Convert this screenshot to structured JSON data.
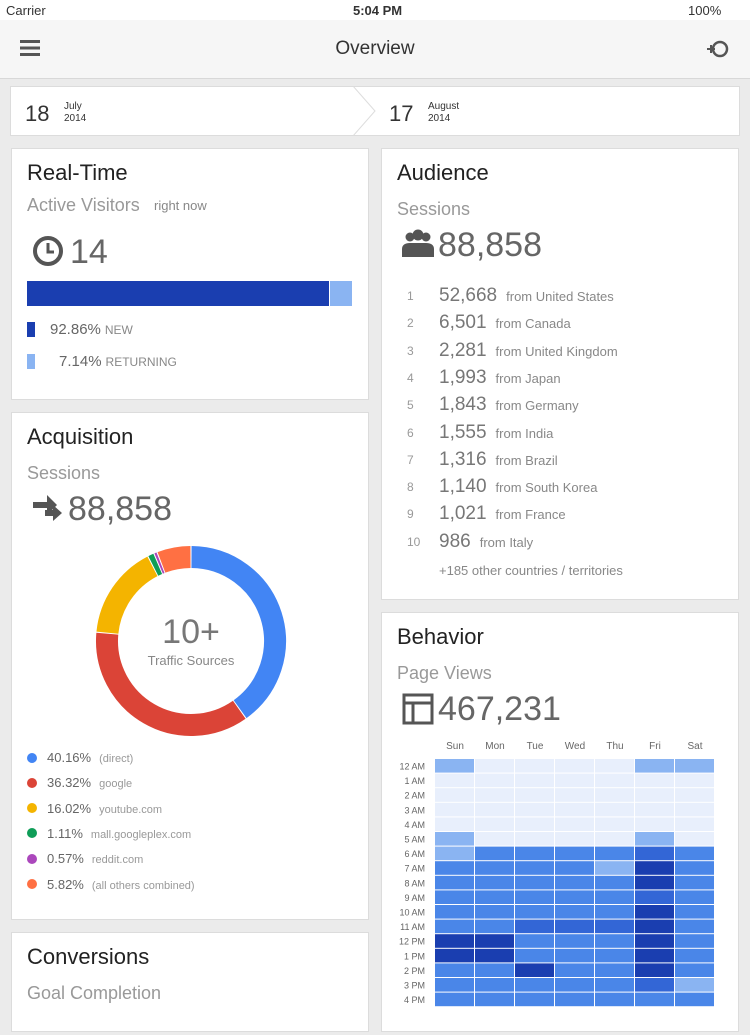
{
  "status_bar": {
    "carrier": "Carrier",
    "time": "5:04 PM",
    "battery": "100%"
  },
  "nav": {
    "title": "Overview"
  },
  "date_range": {
    "start": {
      "day": 18,
      "month": "July",
      "year": 2014
    },
    "end": {
      "day": 17,
      "month": "August",
      "year": 2014
    }
  },
  "real_time": {
    "title": "Real-Time",
    "subtitle": "Active Visitors",
    "note": "right now",
    "active": 14,
    "breakdown": [
      {
        "value": 92.86,
        "label": "92.86%",
        "name": "NEW",
        "color": "#1a3eb0"
      },
      {
        "value": 7.14,
        "label": "7.14%",
        "name": "RETURNING",
        "color": "#8ab4f2"
      }
    ]
  },
  "acquisition": {
    "title": "Acquisition",
    "metric": "Sessions",
    "total": "88,858",
    "center": "10+",
    "center_label": "Traffic Sources",
    "sources": [
      {
        "value": 40.16,
        "label": "40.16%",
        "name": "(direct)",
        "color": "#4285f4"
      },
      {
        "value": 36.32,
        "label": "36.32%",
        "name": "google",
        "color": "#db4437"
      },
      {
        "value": 16.02,
        "label": "16.02%",
        "name": "youtube.com",
        "color": "#f4b400"
      },
      {
        "value": 1.11,
        "label": "1.11%",
        "name": "mall.googleplex.com",
        "color": "#0f9d58"
      },
      {
        "value": 0.57,
        "label": "0.57%",
        "name": "reddit.com",
        "color": "#ab47bc"
      },
      {
        "value": 5.82,
        "label": "5.82%",
        "name": "(all others combined)",
        "color": "#ff7043"
      }
    ]
  },
  "conversions": {
    "title": "Conversions",
    "metric": "Goal Completion"
  },
  "audience": {
    "title": "Audience",
    "metric": "Sessions",
    "total": "88,858",
    "countries": [
      {
        "rank": 1,
        "sessions": "52,668",
        "place": "from United States"
      },
      {
        "rank": 2,
        "sessions": "6,501",
        "place": "from Canada"
      },
      {
        "rank": 3,
        "sessions": "2,281",
        "place": "from United Kingdom"
      },
      {
        "rank": 4,
        "sessions": "1,993",
        "place": "from Japan"
      },
      {
        "rank": 5,
        "sessions": "1,843",
        "place": "from Germany"
      },
      {
        "rank": 6,
        "sessions": "1,555",
        "place": "from India"
      },
      {
        "rank": 7,
        "sessions": "1,316",
        "place": "from Brazil"
      },
      {
        "rank": 8,
        "sessions": "1,140",
        "place": "from South Korea"
      },
      {
        "rank": 9,
        "sessions": "1,021",
        "place": "from France"
      },
      {
        "rank": 10,
        "sessions": 986,
        "place": "from Italy"
      }
    ],
    "more": "+185 other countries / territories"
  },
  "behavior": {
    "title": "Behavior",
    "metric": "Page Views",
    "total": "467,231",
    "days": [
      "Sun",
      "Mon",
      "Tue",
      "Wed",
      "Thu",
      "Fri",
      "Sat"
    ],
    "hours": [
      "12 AM",
      "1 AM",
      "2 AM",
      "3 AM",
      "4 AM",
      "5 AM",
      "6 AM",
      "7 AM",
      "8 AM",
      "9 AM",
      "10 AM",
      "11 AM",
      "12 PM",
      "1 PM",
      "2 PM",
      "3 PM",
      "4 PM"
    ],
    "level_colors": [
      "#e8effc",
      "#c6d9f7",
      "#8ab4f2",
      "#4a86e8",
      "#3366d6",
      "#1a3eb0"
    ],
    "levels": [
      [
        2,
        0,
        0,
        0,
        0,
        2,
        2
      ],
      [
        0,
        0,
        0,
        0,
        0,
        0,
        0
      ],
      [
        0,
        0,
        0,
        0,
        0,
        0,
        0
      ],
      [
        0,
        0,
        0,
        0,
        0,
        0,
        0
      ],
      [
        0,
        0,
        0,
        0,
        0,
        0,
        0
      ],
      [
        2,
        0,
        0,
        0,
        0,
        2,
        0
      ],
      [
        2,
        3,
        3,
        3,
        3,
        4,
        3
      ],
      [
        3,
        3,
        3,
        3,
        2,
        5,
        3
      ],
      [
        3,
        3,
        3,
        3,
        3,
        5,
        3
      ],
      [
        3,
        3,
        3,
        3,
        3,
        4,
        3
      ],
      [
        3,
        3,
        3,
        3,
        3,
        5,
        3
      ],
      [
        3,
        3,
        4,
        4,
        4,
        5,
        3
      ],
      [
        5,
        5,
        3,
        3,
        3,
        5,
        3
      ],
      [
        5,
        5,
        3,
        3,
        3,
        5,
        3
      ],
      [
        3,
        3,
        5,
        3,
        3,
        5,
        3
      ],
      [
        3,
        3,
        3,
        3,
        3,
        4,
        2
      ],
      [
        3,
        3,
        3,
        3,
        3,
        3,
        3
      ]
    ]
  }
}
